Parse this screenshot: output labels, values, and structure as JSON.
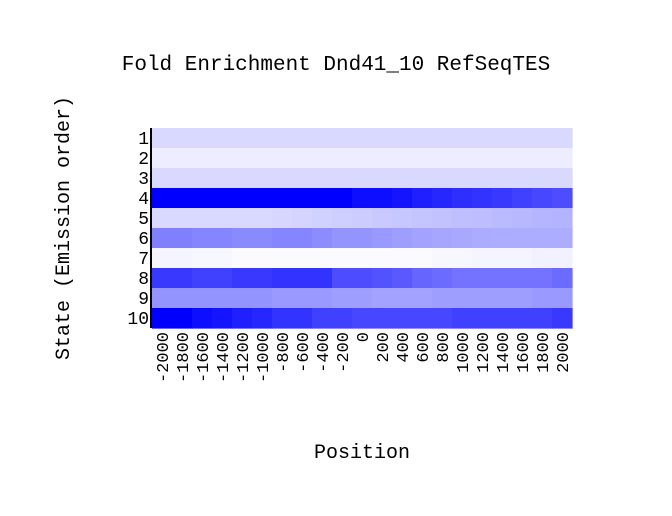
{
  "chart_data": {
    "type": "heatmap",
    "title": "Fold Enrichment Dnd41_10 RefSeqTES",
    "xlabel": "Position",
    "ylabel": "State (Emission order)",
    "x": [
      "-2000",
      "-1800",
      "-1600",
      "-1400",
      "-1200",
      "-1000",
      "-800",
      "-600",
      "-400",
      "-200",
      "0",
      "200",
      "400",
      "600",
      "800",
      "1000",
      "1200",
      "1400",
      "1600",
      "1800",
      "2000"
    ],
    "y": [
      "1",
      "2",
      "3",
      "4",
      "5",
      "6",
      "7",
      "8",
      "9",
      "10"
    ],
    "values": [
      [
        0.15,
        0.15,
        0.15,
        0.15,
        0.15,
        0.15,
        0.15,
        0.15,
        0.15,
        0.15,
        0.15,
        0.15,
        0.15,
        0.15,
        0.15,
        0.15,
        0.15,
        0.15,
        0.15,
        0.15,
        0.15
      ],
      [
        0.07,
        0.07,
        0.07,
        0.07,
        0.07,
        0.07,
        0.07,
        0.07,
        0.07,
        0.07,
        0.07,
        0.07,
        0.07,
        0.07,
        0.07,
        0.07,
        0.07,
        0.07,
        0.07,
        0.07,
        0.07
      ],
      [
        0.15,
        0.15,
        0.15,
        0.15,
        0.15,
        0.15,
        0.15,
        0.15,
        0.15,
        0.15,
        0.15,
        0.15,
        0.15,
        0.15,
        0.15,
        0.15,
        0.15,
        0.15,
        0.15,
        0.15,
        0.15
      ],
      [
        1.0,
        1.0,
        1.0,
        1.0,
        1.0,
        1.0,
        1.0,
        1.0,
        1.0,
        1.0,
        0.95,
        0.95,
        0.92,
        0.88,
        0.85,
        0.82,
        0.8,
        0.78,
        0.75,
        0.72,
        0.7
      ],
      [
        0.15,
        0.15,
        0.15,
        0.15,
        0.15,
        0.15,
        0.16,
        0.17,
        0.18,
        0.19,
        0.2,
        0.21,
        0.22,
        0.23,
        0.24,
        0.25,
        0.26,
        0.27,
        0.28,
        0.29,
        0.3
      ],
      [
        0.5,
        0.5,
        0.48,
        0.48,
        0.46,
        0.46,
        0.48,
        0.48,
        0.45,
        0.42,
        0.42,
        0.4,
        0.38,
        0.36,
        0.35,
        0.34,
        0.33,
        0.32,
        0.32,
        0.32,
        0.32
      ],
      [
        0.04,
        0.04,
        0.03,
        0.03,
        0.02,
        0.02,
        0.02,
        0.02,
        0.02,
        0.02,
        0.02,
        0.02,
        0.02,
        0.02,
        0.03,
        0.03,
        0.04,
        0.04,
        0.04,
        0.05,
        0.05
      ],
      [
        0.78,
        0.78,
        0.75,
        0.75,
        0.78,
        0.78,
        0.8,
        0.8,
        0.8,
        0.7,
        0.7,
        0.68,
        0.65,
        0.6,
        0.58,
        0.55,
        0.55,
        0.55,
        0.55,
        0.55,
        0.58
      ],
      [
        0.42,
        0.42,
        0.42,
        0.42,
        0.42,
        0.42,
        0.4,
        0.4,
        0.4,
        0.38,
        0.38,
        0.36,
        0.36,
        0.36,
        0.38,
        0.38,
        0.38,
        0.38,
        0.38,
        0.4,
        0.4
      ],
      [
        1.0,
        1.0,
        0.95,
        0.92,
        0.88,
        0.85,
        0.8,
        0.8,
        0.75,
        0.75,
        0.72,
        0.72,
        0.72,
        0.72,
        0.72,
        0.75,
        0.75,
        0.75,
        0.75,
        0.75,
        0.78
      ]
    ],
    "colormap": {
      "low": "#ffffff",
      "high": "#0000ff"
    },
    "range": [
      0,
      1
    ]
  }
}
